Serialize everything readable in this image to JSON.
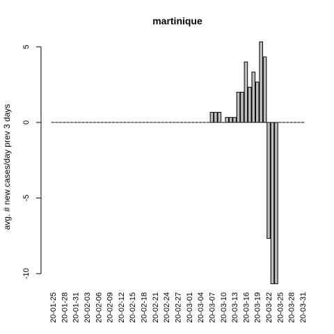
{
  "chart_data": {
    "type": "bar",
    "title": "martinique",
    "xlabel": "",
    "ylabel": "avg. # new cases/day prev  3  days",
    "ylim": [
      -10.8,
      5.4
    ],
    "y_ticks": [
      5,
      0,
      -5,
      -10
    ],
    "y_tick_labels": [
      "5",
      "0",
      "-5",
      "-10"
    ],
    "x_tick_labels": [
      "20-01-25",
      "20-01-28",
      "20-01-31",
      "20-02-03",
      "20-02-06",
      "20-02-09",
      "20-02-12",
      "20-02-15",
      "20-02-18",
      "20-02-21",
      "20-02-24",
      "20-02-27",
      "20-03-01",
      "20-03-04",
      "20-03-07",
      "20-03-10",
      "20-03-13",
      "20-03-16",
      "20-03-19",
      "20-03-22",
      "20-03-25",
      "20-03-28",
      "20-03-31"
    ],
    "categories": [
      "20-01-25",
      "20-01-26",
      "20-01-27",
      "20-01-28",
      "20-01-29",
      "20-01-30",
      "20-01-31",
      "20-02-01",
      "20-02-02",
      "20-02-03",
      "20-02-04",
      "20-02-05",
      "20-02-06",
      "20-02-07",
      "20-02-08",
      "20-02-09",
      "20-02-10",
      "20-02-11",
      "20-02-12",
      "20-02-13",
      "20-02-14",
      "20-02-15",
      "20-02-16",
      "20-02-17",
      "20-02-18",
      "20-02-19",
      "20-02-20",
      "20-02-21",
      "20-02-22",
      "20-02-23",
      "20-02-24",
      "20-02-25",
      "20-02-26",
      "20-02-27",
      "20-02-28",
      "20-02-29",
      "20-03-01",
      "20-03-02",
      "20-03-03",
      "20-03-04",
      "20-03-05",
      "20-03-06",
      "20-03-07",
      "20-03-08",
      "20-03-09",
      "20-03-10",
      "20-03-11",
      "20-03-12",
      "20-03-13",
      "20-03-14",
      "20-03-15",
      "20-03-16",
      "20-03-17",
      "20-03-18",
      "20-03-19",
      "20-03-20",
      "20-03-21",
      "20-03-22",
      "20-03-23",
      "20-03-24",
      "20-03-25",
      "20-03-26",
      "20-03-27",
      "20-03-28",
      "20-03-29",
      "20-03-30",
      "20-03-31"
    ],
    "values": [
      0,
      0,
      0,
      0,
      0,
      0,
      0,
      0,
      0,
      0,
      0,
      0,
      0,
      0,
      0,
      0,
      0,
      0,
      0,
      0,
      0,
      0,
      0,
      0,
      0,
      0,
      0,
      0,
      0,
      0,
      0,
      0,
      0,
      0,
      0,
      0,
      0,
      0,
      0,
      0,
      0,
      0,
      0.67,
      0.67,
      0.67,
      0,
      0.33,
      0.33,
      0.33,
      2.0,
      2.0,
      4.0,
      2.33,
      3.33,
      2.67,
      5.33,
      4.33,
      -7.67,
      -10.67,
      -10.67,
      0,
      0,
      0,
      0,
      0,
      0,
      0
    ],
    "bar_fill": "#bebebe",
    "bar_stroke": "#000000",
    "grid": false
  }
}
